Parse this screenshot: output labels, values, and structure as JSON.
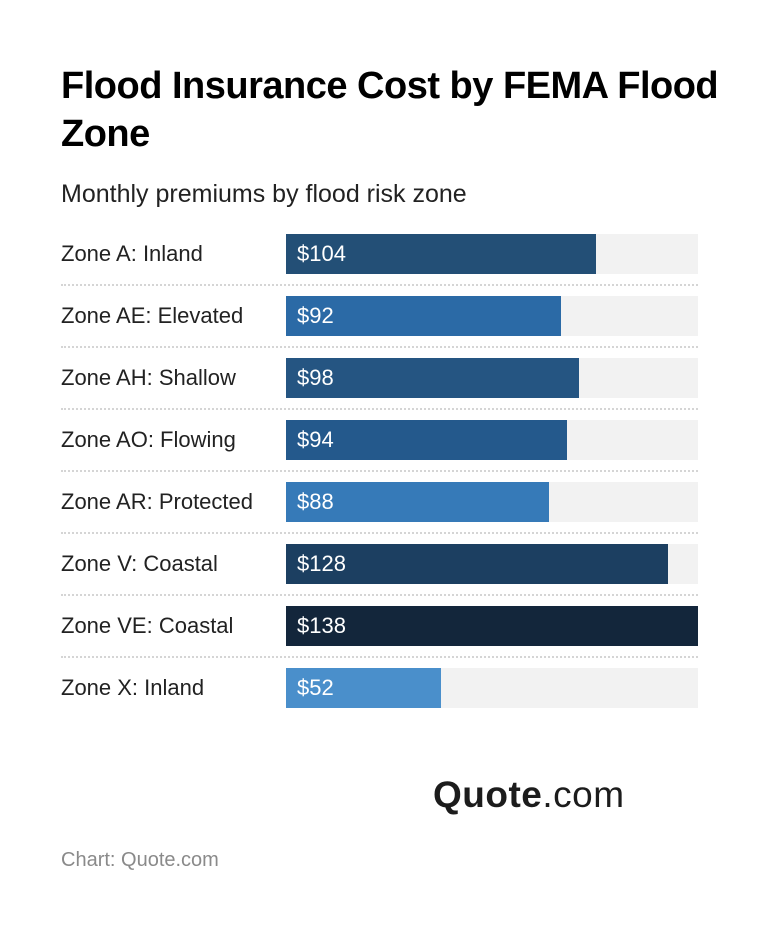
{
  "header": {
    "title": "Flood Insurance Cost by FEMA Flood Zone",
    "subtitle": "Monthly premiums by flood risk zone"
  },
  "rows": [
    {
      "label": "Zone A: Inland",
      "value_label": "$104",
      "value": 104,
      "color": "#234f76"
    },
    {
      "label": "Zone AE: Elevated",
      "value_label": "$92",
      "value": 92,
      "color": "#2b6aa6"
    },
    {
      "label": "Zone AH: Shallow",
      "value_label": "$98",
      "value": 98,
      "color": "#255582"
    },
    {
      "label": "Zone AO: Flowing",
      "value_label": "$94",
      "value": 94,
      "color": "#24598c"
    },
    {
      "label": "Zone AR: Protected",
      "value_label": "$88",
      "value": 88,
      "color": "#367ab8"
    },
    {
      "label": "Zone V: Coastal",
      "value_label": "$128",
      "value": 128,
      "color": "#1c3f61"
    },
    {
      "label": "Zone VE: Coastal",
      "value_label": "$138",
      "value": 138,
      "color": "#13263b"
    },
    {
      "label": "Zone X: Inland",
      "value_label": "$52",
      "value": 52,
      "color": "#4a8fcb"
    }
  ],
  "logo": {
    "bold": "Quote",
    "light": ".com"
  },
  "footer": {
    "source": "Chart: Quote.com"
  },
  "chart_data": {
    "type": "bar",
    "orientation": "horizontal",
    "title": "Flood Insurance Cost by FEMA Flood Zone",
    "subtitle": "Monthly premiums by flood risk zone",
    "categories": [
      "Zone A: Inland",
      "Zone AE: Elevated",
      "Zone AH: Shallow",
      "Zone AO: Flowing",
      "Zone AR: Protected",
      "Zone V: Coastal",
      "Zone VE: Coastal",
      "Zone X: Inland"
    ],
    "values": [
      104,
      92,
      98,
      94,
      88,
      128,
      138,
      52
    ],
    "unit": "USD per month",
    "xlabel": "",
    "ylabel": "",
    "xlim": [
      0,
      138
    ],
    "grid": false,
    "legend": null,
    "source": "Chart: Quote.com"
  }
}
